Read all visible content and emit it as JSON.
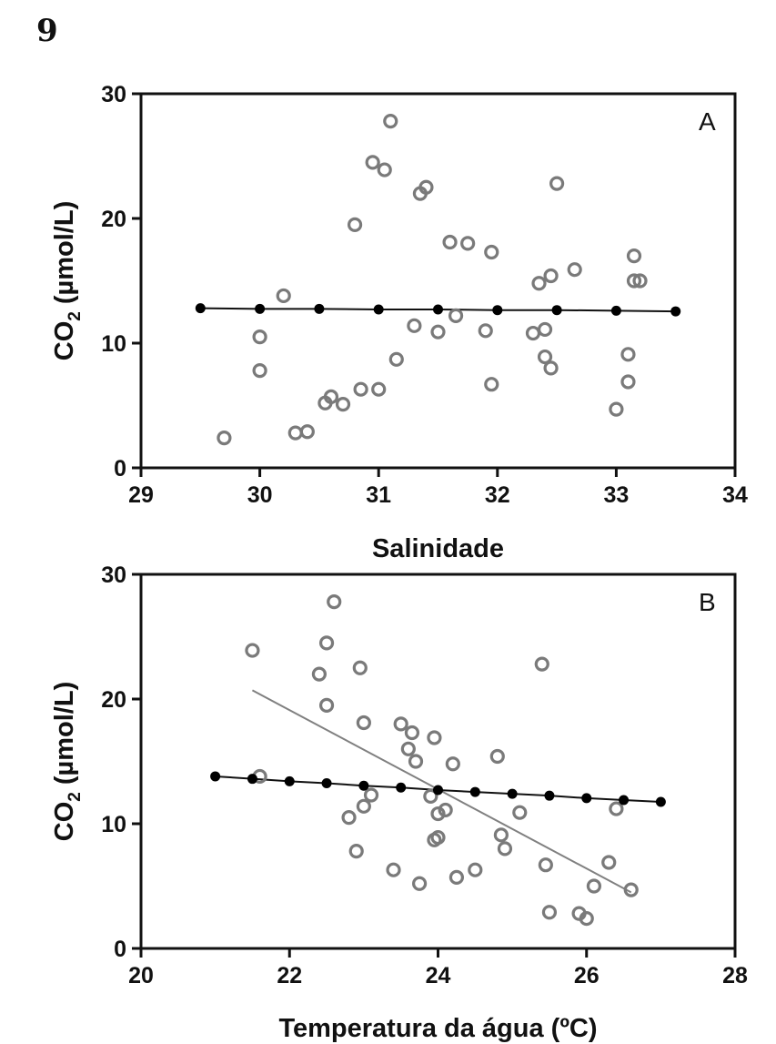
{
  "figure_number": "9",
  "chart_data": [
    {
      "type": "scatter",
      "panel_label": "A",
      "xlabel": "Salinidade",
      "ylabel_main": "CO",
      "ylabel_sub": "2",
      "ylabel_rest": " (µmol/L)",
      "xlim": [
        29,
        34
      ],
      "ylim": [
        0,
        30
      ],
      "xticks": [
        29,
        30,
        31,
        32,
        33,
        34
      ],
      "yticks": [
        0,
        10,
        20,
        30
      ],
      "observed": {
        "x": [
          29.7,
          30.0,
          30.0,
          30.2,
          30.3,
          30.4,
          30.55,
          30.6,
          30.7,
          30.8,
          30.85,
          30.95,
          31.0,
          31.05,
          31.1,
          31.15,
          31.3,
          31.35,
          31.4,
          31.5,
          31.6,
          31.65,
          31.75,
          31.9,
          31.95,
          31.95,
          32.3,
          32.35,
          32.4,
          32.4,
          32.45,
          32.45,
          32.5,
          32.65,
          33.0,
          33.1,
          33.1,
          33.15,
          33.15,
          33.2
        ],
        "y": [
          2.4,
          7.8,
          10.5,
          13.8,
          2.8,
          2.9,
          5.2,
          5.7,
          5.1,
          19.5,
          6.3,
          24.5,
          6.3,
          23.9,
          27.8,
          8.7,
          11.4,
          22.0,
          22.5,
          10.9,
          18.1,
          12.2,
          18.0,
          11.0,
          17.3,
          6.7,
          10.8,
          14.8,
          11.1,
          8.9,
          8.0,
          15.4,
          22.8,
          15.9,
          4.7,
          9.1,
          6.9,
          15.0,
          17.0,
          15.0
        ]
      },
      "fitted": {
        "x": [
          29.5,
          30.0,
          30.5,
          31.0,
          31.5,
          32.0,
          32.5,
          33.0,
          33.5
        ],
        "y": [
          12.8,
          12.75,
          12.75,
          12.7,
          12.7,
          12.65,
          12.65,
          12.6,
          12.55
        ]
      },
      "trend": null
    },
    {
      "type": "scatter",
      "panel_label": "B",
      "xlabel": "Temperatura da água (ºC)",
      "ylabel_main": "CO",
      "ylabel_sub": "2",
      "ylabel_rest": " (µmol/L)",
      "xlim": [
        20,
        28
      ],
      "ylim": [
        0,
        30
      ],
      "xticks": [
        20,
        22,
        24,
        26,
        28
      ],
      "yticks": [
        0,
        10,
        20,
        30
      ],
      "observed": {
        "x": [
          21.5,
          21.6,
          22.4,
          22.5,
          22.5,
          22.6,
          22.8,
          22.9,
          22.95,
          23.0,
          23.0,
          23.1,
          23.4,
          23.5,
          23.6,
          23.65,
          23.7,
          23.75,
          23.9,
          23.95,
          23.95,
          24.0,
          24.0,
          24.1,
          24.2,
          24.25,
          24.5,
          24.8,
          24.85,
          24.9,
          25.1,
          25.4,
          25.45,
          25.5,
          25.9,
          26.0,
          26.1,
          26.3,
          26.4,
          26.6
        ],
        "y": [
          23.9,
          13.8,
          22.0,
          24.5,
          19.5,
          27.8,
          10.5,
          7.8,
          22.5,
          18.1,
          11.4,
          12.3,
          6.3,
          18.0,
          16.0,
          17.3,
          15.0,
          5.2,
          12.2,
          8.7,
          16.9,
          10.8,
          8.9,
          11.1,
          14.8,
          5.7,
          6.3,
          15.4,
          9.1,
          8.0,
          10.9,
          22.8,
          6.7,
          2.9,
          2.8,
          2.4,
          5.0,
          6.9,
          11.2,
          4.7
        ]
      },
      "fitted": {
        "x": [
          21.0,
          21.5,
          22.0,
          22.5,
          23.0,
          23.5,
          24.0,
          24.5,
          25.0,
          25.5,
          26.0,
          26.5,
          27.0
        ],
        "y": [
          13.8,
          13.6,
          13.4,
          13.25,
          13.05,
          12.9,
          12.7,
          12.55,
          12.4,
          12.25,
          12.05,
          11.9,
          11.75
        ]
      },
      "trend": {
        "x": [
          21.5,
          26.6
        ],
        "y": [
          20.7,
          4.5
        ]
      }
    }
  ],
  "colors": {
    "observed_stroke": "#7a7a7a",
    "fitted_line": "#111111",
    "fitted_points": "#000000",
    "trend_line": "#808080",
    "axis": "#111111"
  }
}
